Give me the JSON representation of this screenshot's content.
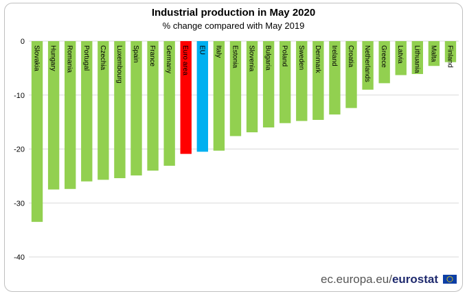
{
  "title": "Industrial production in May 2020",
  "subtitle": "% change compared with May 2019",
  "footer": {
    "domain_text": "ec.europa.eu/",
    "brand_text": "eurostat"
  },
  "colors": {
    "country": "#92d050",
    "euro_area": "#ff0000",
    "eu": "#00b0f0",
    "grid": "#d9d9d9"
  },
  "chart_data": {
    "type": "bar",
    "title": "Industrial production in May 2020",
    "subtitle": "% change compared with May 2019",
    "categories": [
      "Slovakia",
      "Hungary",
      "Romania",
      "Portugal",
      "Czechia",
      "Luxembourg",
      "Spain",
      "France",
      "Germany",
      "Euro area",
      "EU",
      "Italy",
      "Estonia",
      "Slovenia",
      "Bulgaria",
      "Poland",
      "Sweden",
      "Denmark",
      "Ireland",
      "Croatia",
      "Netherlands",
      "Greece",
      "Latvia",
      "Lithuania",
      "Malta",
      "Finland"
    ],
    "values": [
      -33.5,
      -27.5,
      -27.4,
      -26.0,
      -25.7,
      -25.4,
      -24.9,
      -24.0,
      -23.1,
      -20.9,
      -20.5,
      -20.3,
      -17.6,
      -16.9,
      -16.0,
      -15.2,
      -14.8,
      -14.6,
      -13.6,
      -12.4,
      -9.0,
      -7.8,
      -6.3,
      -6.1,
      -4.6,
      -3.9
    ],
    "highlight": {
      "Euro area": "euro_area",
      "EU": "eu"
    },
    "ylim": [
      -40,
      0
    ],
    "yticks": [
      0,
      -10,
      -20,
      -30,
      -40
    ],
    "grid": true,
    "legend": "none",
    "xlabel": "",
    "ylabel": ""
  }
}
